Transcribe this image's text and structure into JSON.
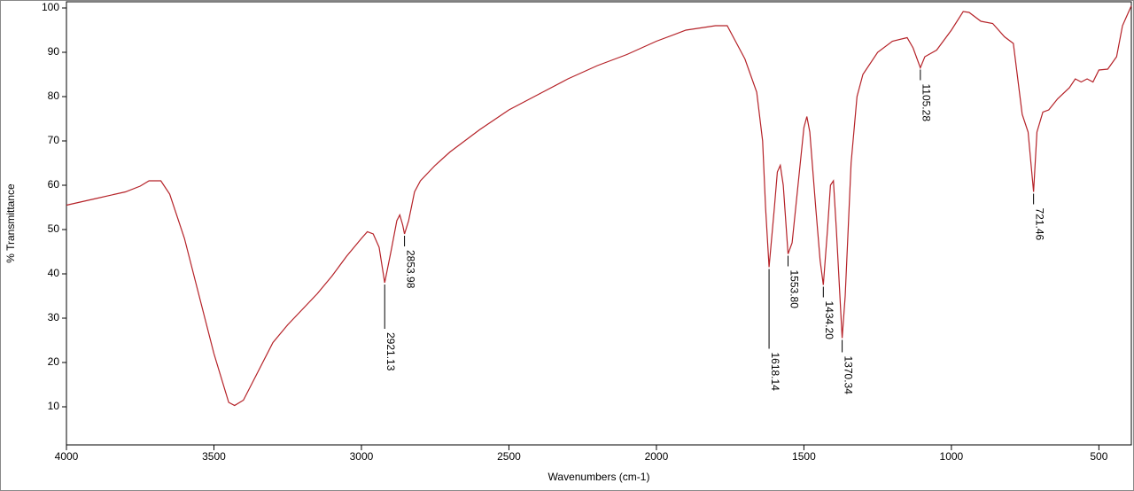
{
  "chart_data": {
    "type": "line",
    "x_label": "Wavenumbers (cm-1)",
    "y_label": "% Transmittance",
    "xlim": [
      4000,
      390
    ],
    "ylim": [
      1.4,
      101.4
    ],
    "xticks": [
      4000,
      3500,
      3000,
      2500,
      2000,
      1500,
      1000,
      500
    ],
    "yticks": [
      10,
      20,
      30,
      40,
      50,
      60,
      70,
      80,
      90,
      100
    ],
    "x": [
      4000,
      3900,
      3800,
      3750,
      3720,
      3680,
      3650,
      3600,
      3550,
      3500,
      3450,
      3430,
      3400,
      3350,
      3300,
      3250,
      3200,
      3150,
      3100,
      3050,
      3000,
      2980,
      2960,
      2940,
      2921.13,
      2900,
      2880,
      2870,
      2860,
      2853.98,
      2840,
      2820,
      2800,
      2750,
      2700,
      2600,
      2500,
      2400,
      2300,
      2200,
      2100,
      2000,
      1900,
      1800,
      1760,
      1740,
      1700,
      1660,
      1640,
      1630,
      1618.14,
      1600,
      1590,
      1580,
      1570,
      1553.8,
      1540,
      1520,
      1500,
      1490,
      1480,
      1460,
      1445,
      1434.2,
      1420,
      1410,
      1400,
      1390,
      1370.34,
      1360,
      1340,
      1320,
      1300,
      1250,
      1200,
      1150,
      1130,
      1105.28,
      1090,
      1050,
      1000,
      960,
      940,
      900,
      860,
      820,
      790,
      760,
      740,
      721.46,
      710,
      690,
      670,
      640,
      600,
      580,
      560,
      540,
      520,
      500,
      470,
      440,
      420,
      390
    ],
    "series": [
      {
        "color": "#b52228",
        "values": [
          55.5,
          57,
          58.5,
          59.8,
          61,
          61,
          58,
          48,
          35,
          22,
          11,
          10.3,
          11.5,
          18,
          24.5,
          28.5,
          32,
          35.5,
          39.5,
          44,
          48,
          49.5,
          49,
          46,
          38,
          45,
          52,
          53.3,
          51,
          49,
          52,
          58.5,
          61,
          64.5,
          67.5,
          72.5,
          77,
          80.5,
          84,
          87,
          89.5,
          92.5,
          95,
          96,
          96,
          93.5,
          88.5,
          81,
          70,
          55,
          41.5,
          55,
          63,
          64.5,
          60,
          44.5,
          47,
          60,
          73,
          75.5,
          72,
          55,
          43,
          37.5,
          50,
          60,
          61,
          50,
          25.5,
          35,
          65,
          80,
          85,
          90,
          92.5,
          93.3,
          91,
          86.5,
          89,
          90.5,
          95,
          99.2,
          99,
          97,
          96.5,
          93.5,
          92,
          76,
          72,
          58.5,
          72,
          76.5,
          77,
          79.5,
          82,
          84,
          83.3,
          84,
          83.3,
          86,
          86.2,
          89,
          96,
          100.5
        ]
      }
    ],
    "peaks": [
      {
        "x": 2921.13,
        "label": "2921.13"
      },
      {
        "x": 2853.98,
        "label": "2853.98"
      },
      {
        "x": 1618.14,
        "label": "1618.14"
      },
      {
        "x": 1553.8,
        "label": "1553.80"
      },
      {
        "x": 1434.2,
        "label": "1434.20"
      },
      {
        "x": 1370.34,
        "label": "1370.34"
      },
      {
        "x": 1105.28,
        "label": "1105.28"
      },
      {
        "x": 721.46,
        "label": "721.46"
      }
    ]
  }
}
